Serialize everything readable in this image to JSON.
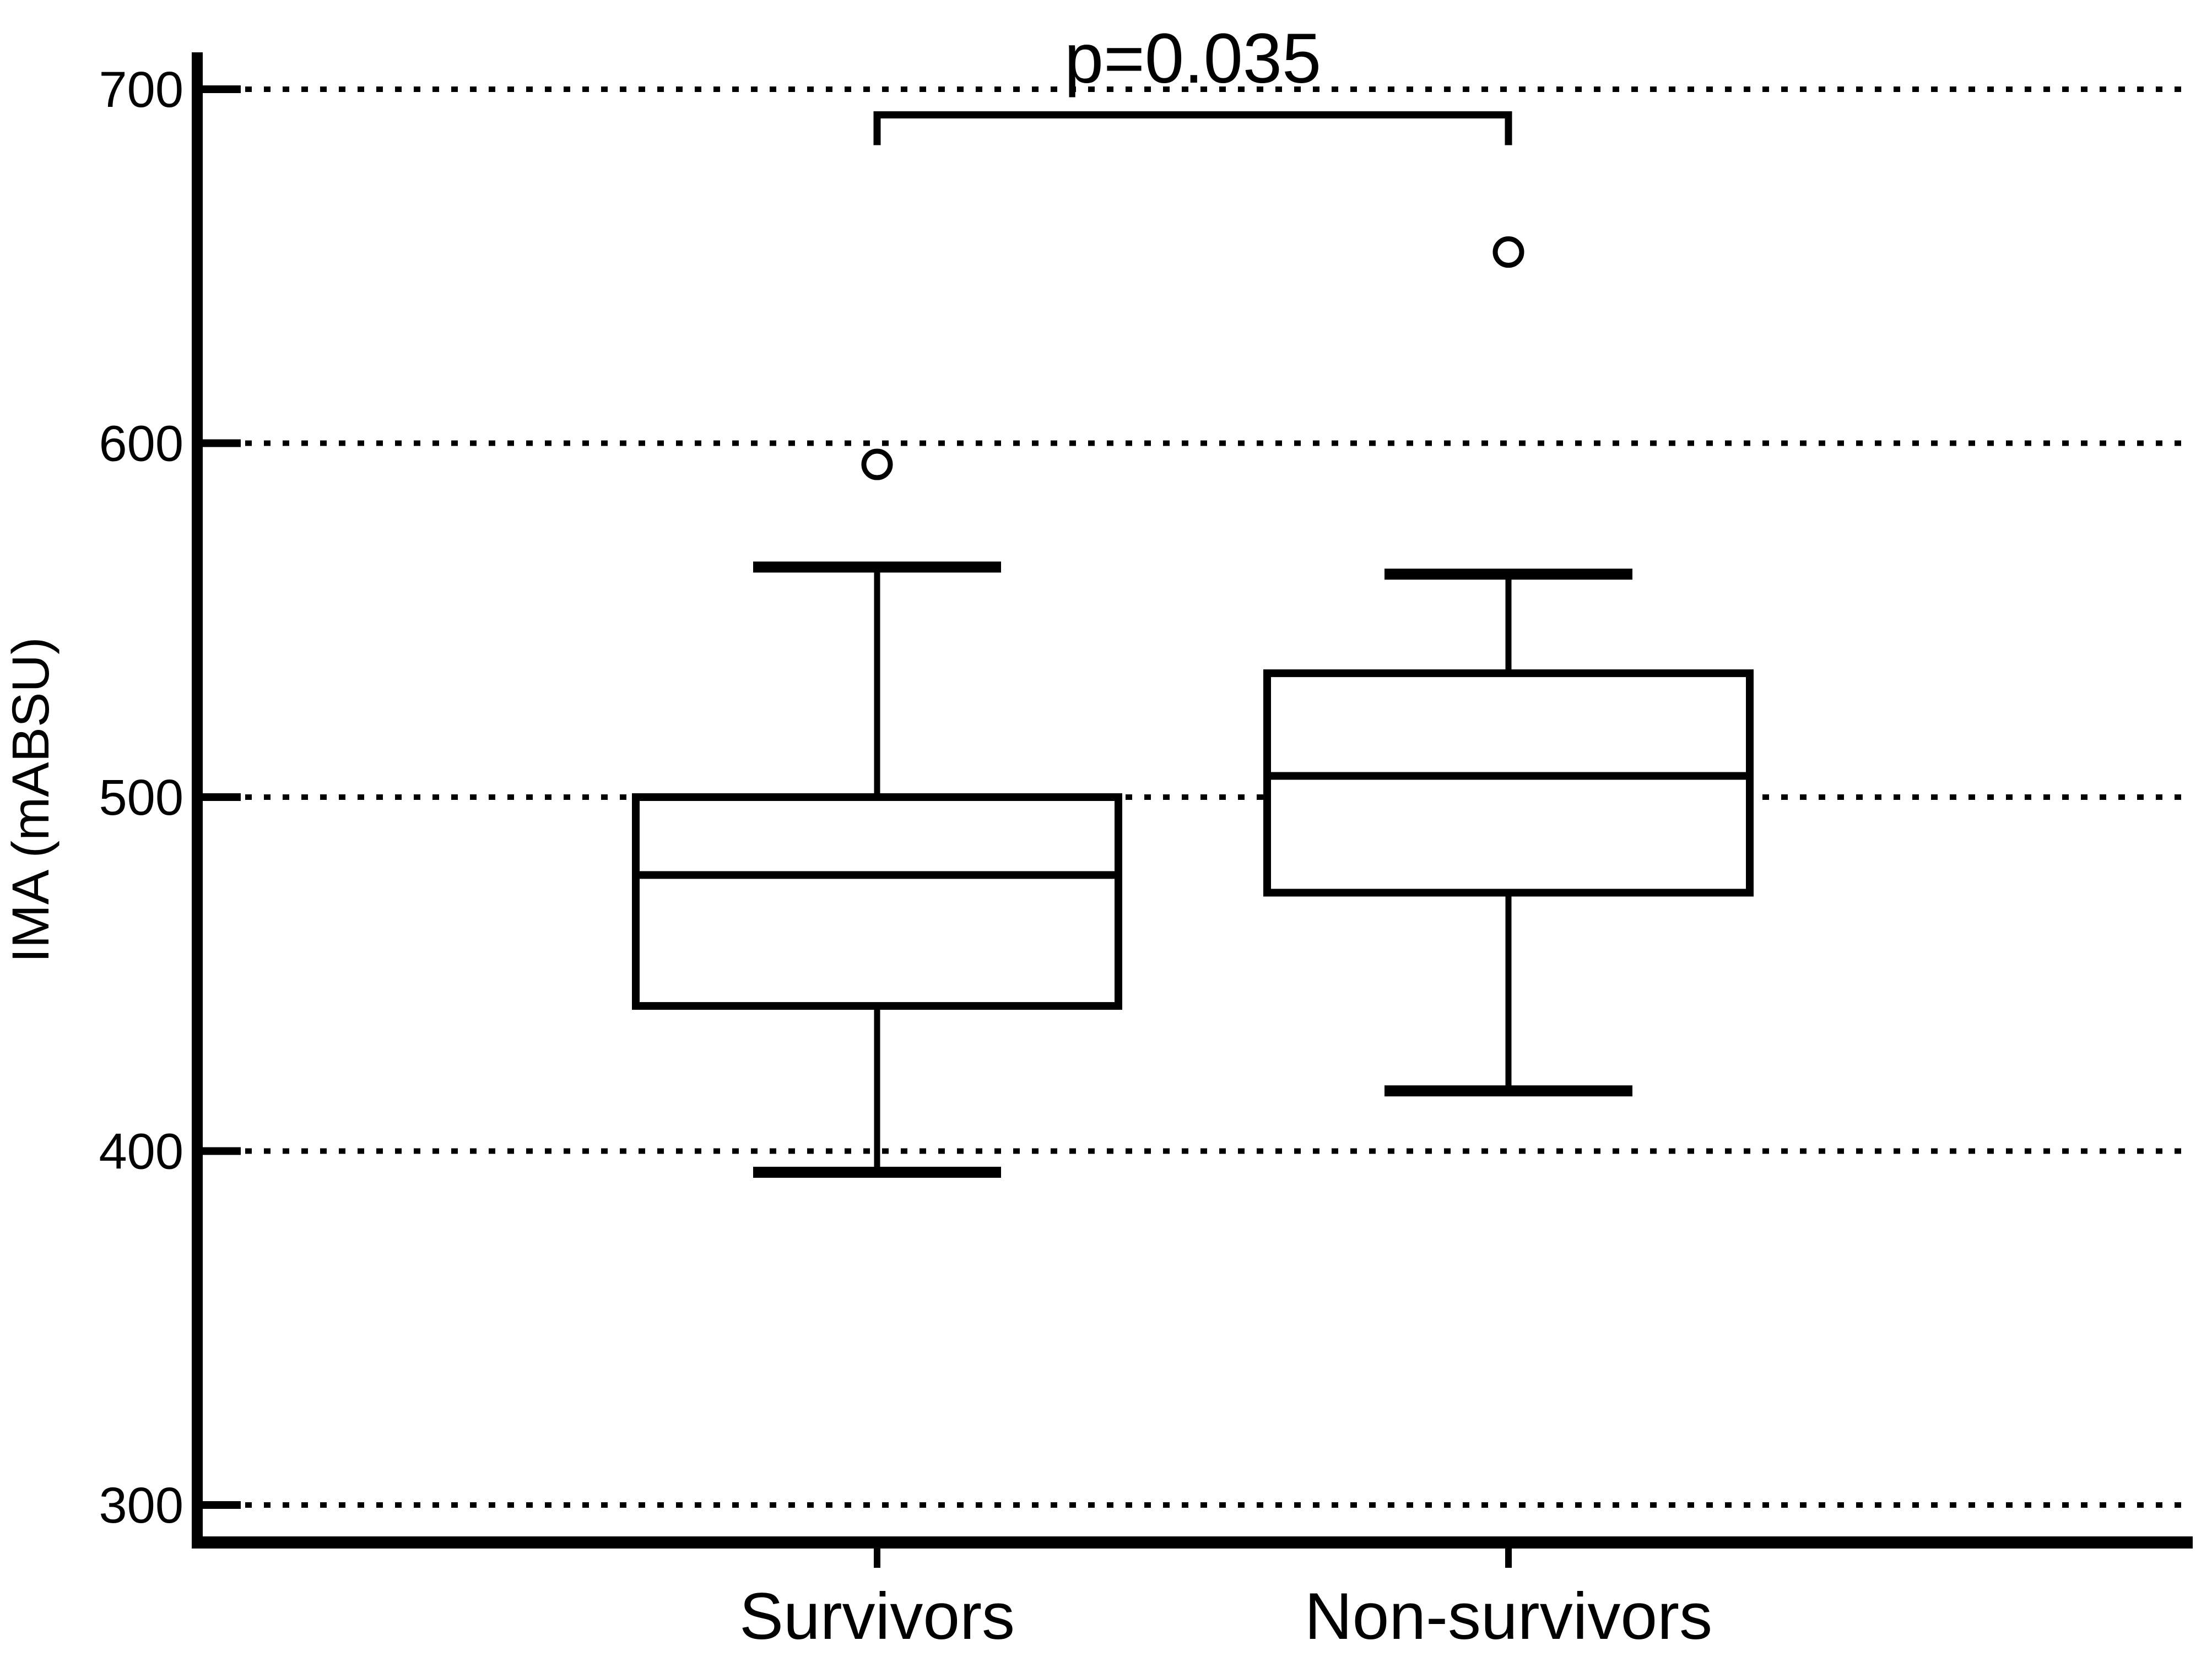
{
  "chart_data": {
    "type": "box",
    "title": "",
    "xlabel": "",
    "ylabel": "IMA (mABSU)",
    "yticks": [
      700,
      600,
      500,
      400,
      300
    ],
    "ylim": [
      289,
      710
    ],
    "grid": "horizontal-dotted",
    "legend": "none",
    "categories": [
      "Survivors",
      "Non-survivors"
    ],
    "series": [
      {
        "label": "Survivors",
        "whisker_low": 394,
        "q1": 441,
        "median": 478,
        "q3": 500,
        "whisker_high": 565,
        "outliers": [
          594
        ]
      },
      {
        "label": "Non-survivors",
        "whisker_low": 417,
        "q1": 473,
        "median": 506,
        "q3": 535,
        "whisker_high": 563,
        "outliers": [
          654
        ]
      }
    ],
    "annotation": {
      "text": "p=0.035",
      "between": [
        "Survivors",
        "Non-survivors"
      ]
    },
    "colors": {
      "stroke": "#000000",
      "background": "#ffffff"
    }
  }
}
